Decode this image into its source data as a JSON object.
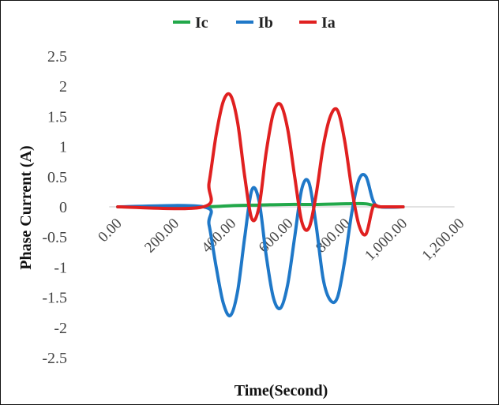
{
  "chart_data": {
    "type": "line",
    "xlabel": "Time(Second)",
    "ylabel": "Phase Current (A)",
    "xlim": [
      -100,
      1300
    ],
    "ylim": [
      -2.5,
      2.5
    ],
    "yticks": [
      "2.5",
      "2",
      "1.5",
      "1",
      "0.5",
      "0",
      "-0.5",
      "-1",
      "-1.5",
      "-2",
      "-2.5"
    ],
    "ytick_values": [
      2.5,
      2,
      1.5,
      1,
      0.5,
      0,
      -0.5,
      -1,
      -1.5,
      -2,
      -2.5
    ],
    "xticks": [
      "0.00",
      "200.00",
      "400.00",
      "600.00",
      "800.00",
      "1,000.00",
      "1,200.00"
    ],
    "xtick_values": [
      0,
      200,
      400,
      600,
      800,
      1000,
      1200
    ],
    "legend_position": "top",
    "grid": false,
    "series": [
      {
        "name": "Ic",
        "color": "#22a84a",
        "x": [
          0,
          300,
          400,
          500,
          600,
          700,
          800,
          870,
          920,
          1000
        ],
        "y": [
          0,
          0,
          0.02,
          0.03,
          0.04,
          0.04,
          0.05,
          0.05,
          0,
          0
        ]
      },
      {
        "name": "Ib",
        "color": "#1f78c8",
        "x": [
          0,
          300,
          320,
          345,
          370,
          395,
          420,
          445,
          470,
          495,
          520,
          545,
          570,
          595,
          620,
          645,
          670,
          695,
          720,
          745,
          770,
          795,
          820,
          845,
          870,
          895,
          920,
          1000
        ],
        "y": [
          0,
          0,
          -0.3,
          -1.0,
          -1.6,
          -1.8,
          -1.4,
          -0.5,
          0.28,
          0.1,
          -0.8,
          -1.5,
          -1.68,
          -1.3,
          -0.5,
          0.3,
          0.4,
          -0.3,
          -1.2,
          -1.55,
          -1.5,
          -0.9,
          -0.1,
          0.45,
          0.5,
          0.1,
          0,
          0
        ]
      },
      {
        "name": "Ia",
        "color": "#e02020",
        "x": [
          0,
          300,
          320,
          345,
          370,
          395,
          420,
          445,
          470,
          495,
          520,
          545,
          570,
          595,
          620,
          645,
          670,
          695,
          720,
          745,
          770,
          795,
          820,
          845,
          870,
          895,
          920,
          1000
        ],
        "y": [
          0,
          0,
          0.4,
          1.2,
          1.75,
          1.85,
          1.4,
          0.5,
          -0.2,
          0.0,
          0.9,
          1.55,
          1.7,
          1.3,
          0.5,
          -0.25,
          -0.35,
          0.2,
          1.0,
          1.5,
          1.6,
          1.1,
          0.3,
          -0.3,
          -0.45,
          0.0,
          0,
          0
        ]
      }
    ],
    "legend_order": [
      "Ic",
      "Ib",
      "Ia"
    ]
  }
}
